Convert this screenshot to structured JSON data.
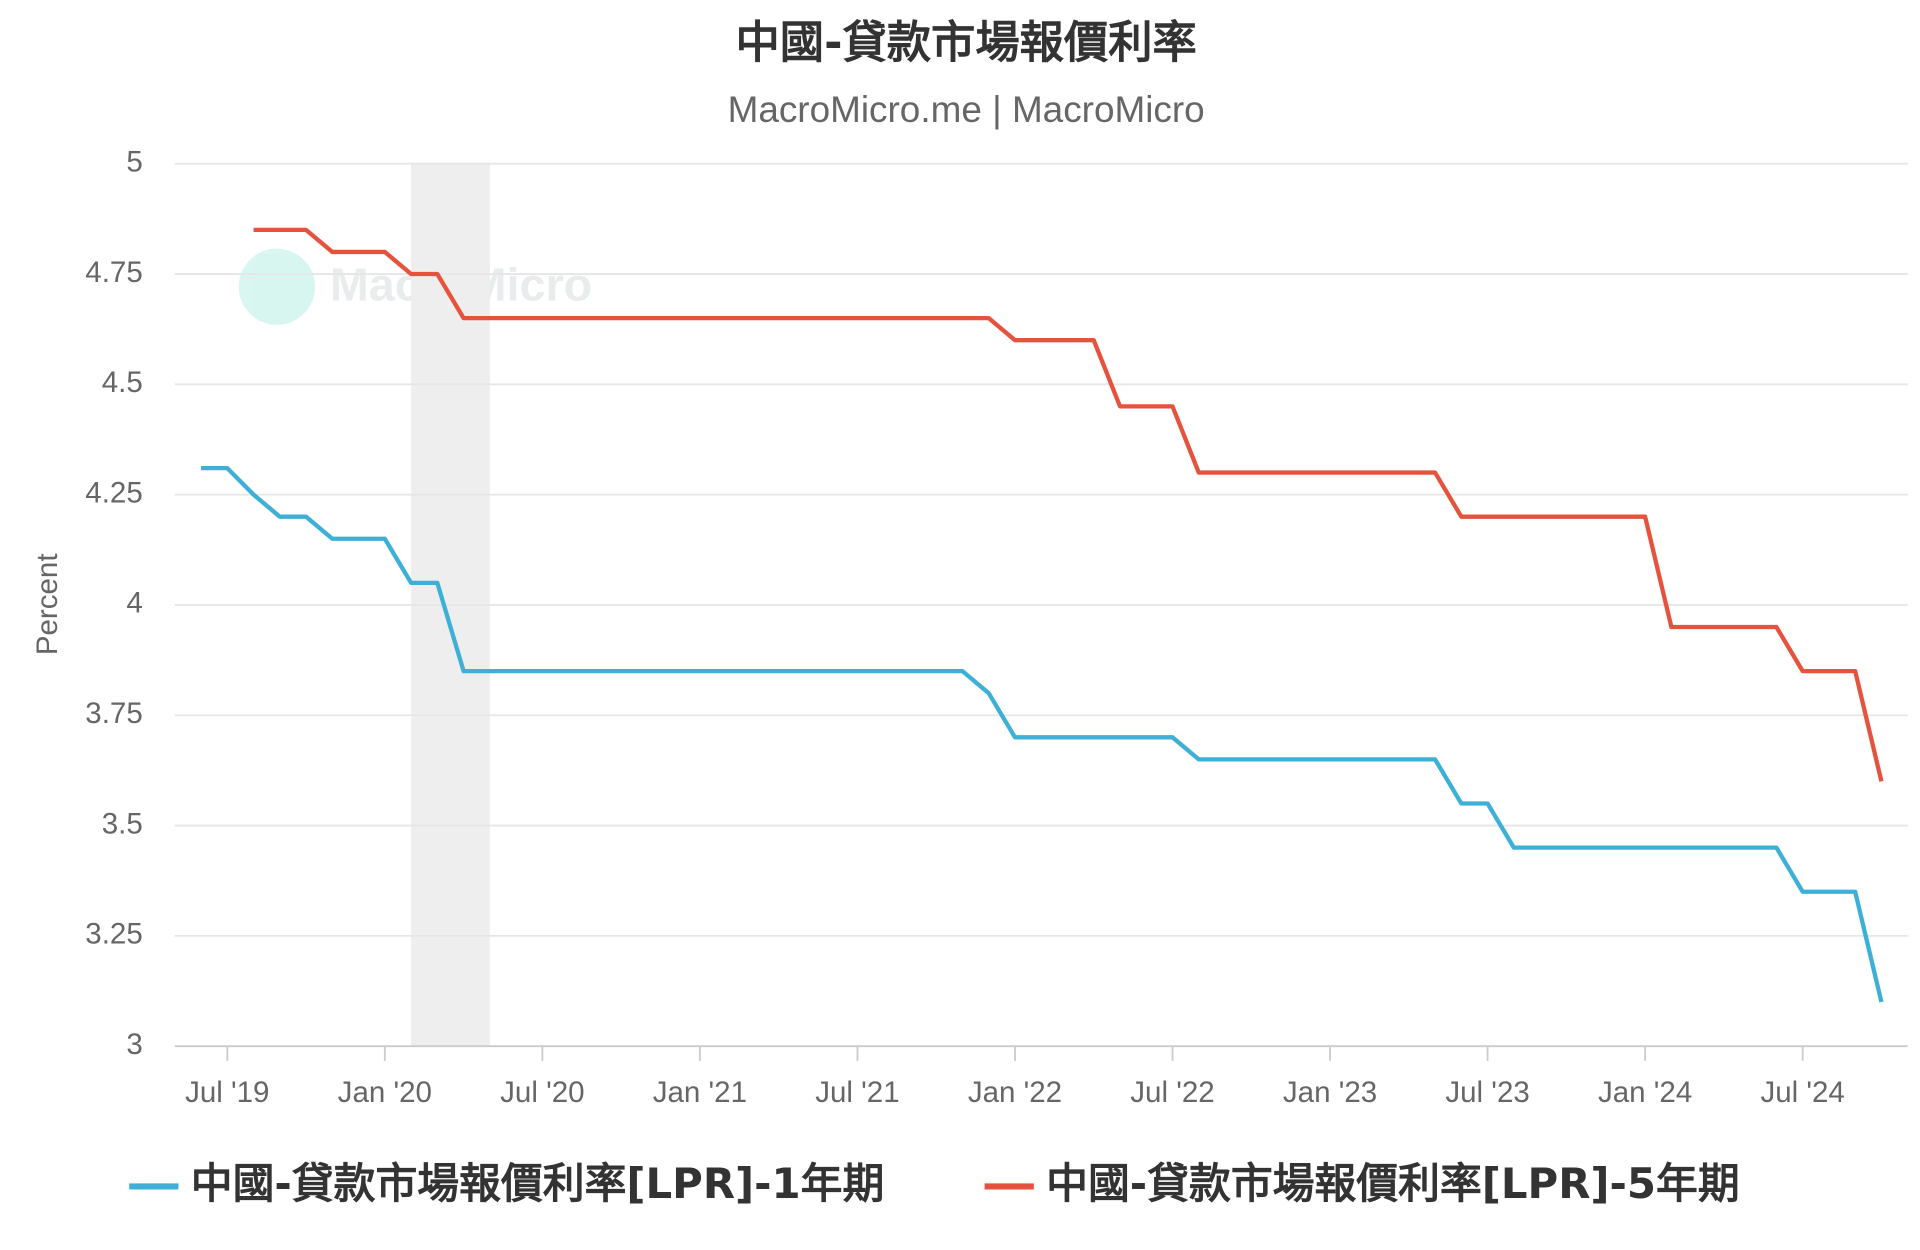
{
  "chart_data": {
    "type": "line",
    "title": "中國-貸款市場報價利率",
    "subtitle": "MacroMicro.me | MacroMicro",
    "watermark": "MacroMicro",
    "y_label": "Percent",
    "x": [
      "2019-06",
      "2019-07",
      "2019-08",
      "2019-09",
      "2019-10",
      "2019-11",
      "2019-12",
      "2020-01",
      "2020-02",
      "2020-03",
      "2020-04",
      "2020-05",
      "2020-06",
      "2020-07",
      "2020-08",
      "2020-09",
      "2020-10",
      "2020-11",
      "2020-12",
      "2021-01",
      "2021-02",
      "2021-03",
      "2021-04",
      "2021-05",
      "2021-06",
      "2021-07",
      "2021-08",
      "2021-09",
      "2021-10",
      "2021-11",
      "2021-12",
      "2022-01",
      "2022-02",
      "2022-03",
      "2022-04",
      "2022-05",
      "2022-06",
      "2022-07",
      "2022-08",
      "2022-09",
      "2022-10",
      "2022-11",
      "2022-12",
      "2023-01",
      "2023-02",
      "2023-03",
      "2023-04",
      "2023-05",
      "2023-06",
      "2023-07",
      "2023-08",
      "2023-09",
      "2023-10",
      "2023-11",
      "2023-12",
      "2024-01",
      "2024-02",
      "2024-03",
      "2024-04",
      "2024-05",
      "2024-06",
      "2024-07",
      "2024-08",
      "2024-09",
      "2024-10"
    ],
    "series": [
      {
        "name": "中國-貸款市場報價利率[LPR]-1年期",
        "color": "#3eb0d8",
        "values": [
          4.31,
          4.31,
          4.25,
          4.2,
          4.2,
          4.15,
          4.15,
          4.15,
          4.05,
          4.05,
          3.85,
          3.85,
          3.85,
          3.85,
          3.85,
          3.85,
          3.85,
          3.85,
          3.85,
          3.85,
          3.85,
          3.85,
          3.85,
          3.85,
          3.85,
          3.85,
          3.85,
          3.85,
          3.85,
          3.85,
          3.8,
          3.7,
          3.7,
          3.7,
          3.7,
          3.7,
          3.7,
          3.7,
          3.65,
          3.65,
          3.65,
          3.65,
          3.65,
          3.65,
          3.65,
          3.65,
          3.65,
          3.65,
          3.55,
          3.55,
          3.45,
          3.45,
          3.45,
          3.45,
          3.45,
          3.45,
          3.45,
          3.45,
          3.45,
          3.45,
          3.45,
          3.35,
          3.35,
          3.35,
          3.1
        ]
      },
      {
        "name": "中國-貸款市場報價利率[LPR]-5年期",
        "color": "#e5533e",
        "values": [
          null,
          null,
          4.85,
          4.85,
          4.85,
          4.8,
          4.8,
          4.8,
          4.75,
          4.75,
          4.65,
          4.65,
          4.65,
          4.65,
          4.65,
          4.65,
          4.65,
          4.65,
          4.65,
          4.65,
          4.65,
          4.65,
          4.65,
          4.65,
          4.65,
          4.65,
          4.65,
          4.65,
          4.65,
          4.65,
          4.65,
          4.6,
          4.6,
          4.6,
          4.6,
          4.45,
          4.45,
          4.45,
          4.3,
          4.3,
          4.3,
          4.3,
          4.3,
          4.3,
          4.3,
          4.3,
          4.3,
          4.3,
          4.2,
          4.2,
          4.2,
          4.2,
          4.2,
          4.2,
          4.2,
          4.2,
          3.95,
          3.95,
          3.95,
          3.95,
          3.95,
          3.85,
          3.85,
          3.85,
          3.6
        ]
      }
    ],
    "shaded_ranges": [
      [
        "2020-02",
        "2020-05"
      ]
    ],
    "shade_color": "#eeeeee",
    "xlim": [
      "2019-05",
      "2024-11"
    ],
    "xticks": [
      {
        "value": "2019-07",
        "label": "Jul '19"
      },
      {
        "value": "2020-01",
        "label": "Jan '20"
      },
      {
        "value": "2020-07",
        "label": "Jul '20"
      },
      {
        "value": "2021-01",
        "label": "Jan '21"
      },
      {
        "value": "2021-07",
        "label": "Jul '21"
      },
      {
        "value": "2022-01",
        "label": "Jan '22"
      },
      {
        "value": "2022-07",
        "label": "Jul '22"
      },
      {
        "value": "2023-01",
        "label": "Jan '23"
      },
      {
        "value": "2023-07",
        "label": "Jul '23"
      },
      {
        "value": "2024-01",
        "label": "Jan '24"
      },
      {
        "value": "2024-07",
        "label": "Jul '24"
      }
    ],
    "ylim": [
      3,
      5
    ],
    "yticks": [
      3,
      3.25,
      3.5,
      3.75,
      4,
      4.25,
      4.5,
      4.75,
      5
    ],
    "grid": true
  }
}
